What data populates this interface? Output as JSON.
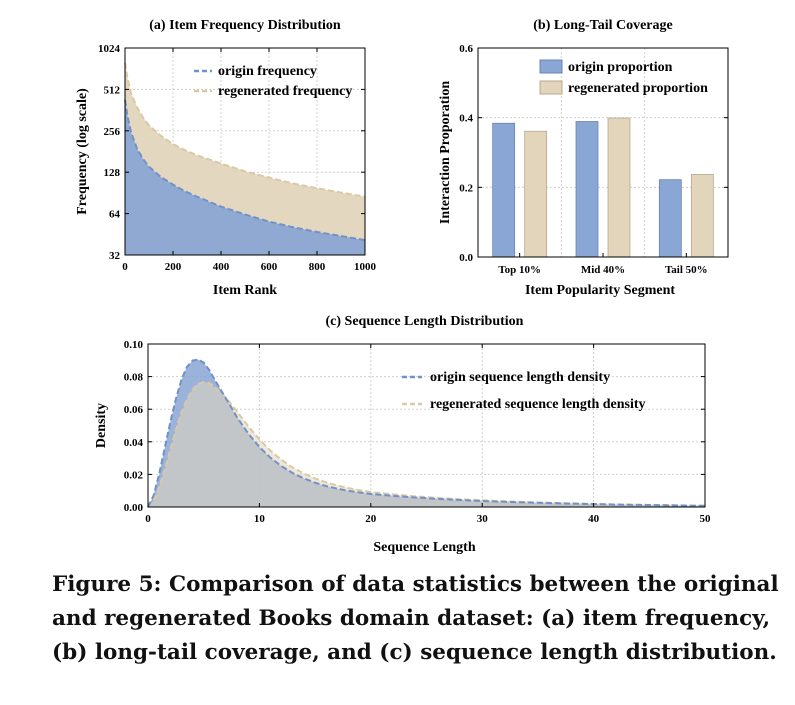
{
  "caption": "Figure 5: Comparison of data statistics between the original and regenerated Books domain dataset: (a) item frequency, (b) long-tail coverage, and (c) sequence length distribution.",
  "colors": {
    "origin": "#7191c8",
    "origin_fill": "#8aa6d4",
    "regen": "#d9c9a6",
    "regen_fill": "#e2d5bc",
    "grid": "#d0d0d0"
  },
  "chart_data": [
    {
      "id": "a",
      "type": "area",
      "title": "(a) Item Frequency Distribution",
      "xlabel": "Item Rank",
      "ylabel": "Frequency (log scale)",
      "yscale": "log2",
      "xlim": [
        0,
        1000
      ],
      "ylim": [
        32,
        1024
      ],
      "xticks": [
        0,
        200,
        400,
        600,
        800,
        1000
      ],
      "yticks": [
        32,
        64,
        128,
        256,
        512,
        1024
      ],
      "grid": true,
      "legend_position": "top-right",
      "x": [
        0,
        10,
        25,
        50,
        75,
        100,
        150,
        200,
        250,
        300,
        400,
        500,
        600,
        700,
        800,
        900,
        1000
      ],
      "series": [
        {
          "name": "origin frequency",
          "values": [
            430,
            330,
            250,
            190,
            160,
            140,
            118,
            104,
            93,
            85,
            72,
            63,
            56,
            51,
            47,
            44,
            41
          ]
        },
        {
          "name": "regenerated frequency",
          "values": [
            800,
            620,
            480,
            380,
            320,
            280,
            235,
            205,
            185,
            170,
            148,
            130,
            117,
            106,
            98,
            91,
            85
          ]
        }
      ]
    },
    {
      "id": "b",
      "type": "bar",
      "title": "(b) Long-Tail Coverage",
      "xlabel": "Item Popularity Segment",
      "ylabel": "Interaction Proporation",
      "ylim": [
        0,
        0.6
      ],
      "yticks": [
        0.0,
        0.2,
        0.4,
        0.6
      ],
      "grid": true,
      "legend_position": "top-right",
      "categories": [
        "Top 10%",
        "Mid 40%",
        "Tail 50%"
      ],
      "series": [
        {
          "name": "origin proportion",
          "values": [
            0.384,
            0.389,
            0.222
          ]
        },
        {
          "name": "regenerated proportion",
          "values": [
            0.361,
            0.399,
            0.237
          ]
        }
      ]
    },
    {
      "id": "c",
      "type": "area",
      "title": "(c) Sequence Length Distribution",
      "xlabel": "Sequence Length",
      "ylabel": "Density",
      "xlim": [
        0,
        50
      ],
      "ylim": [
        0,
        0.1
      ],
      "xticks": [
        0,
        10,
        20,
        30,
        40,
        50
      ],
      "yticks": [
        0.0,
        0.02,
        0.04,
        0.06,
        0.08,
        0.1
      ],
      "grid": true,
      "legend_position": "top-right",
      "x": [
        0,
        0.5,
        1,
        1.5,
        2,
        2.5,
        3,
        3.5,
        4,
        4.5,
        5,
        5.5,
        6,
        7,
        8,
        9,
        10,
        11,
        12,
        13,
        14,
        15,
        16,
        17,
        18,
        19,
        20,
        22,
        24,
        26,
        28,
        30,
        32,
        34,
        36,
        38,
        40,
        42,
        44,
        46,
        48,
        50
      ],
      "series": [
        {
          "name": "origin sequence length density",
          "values": [
            0.0,
            0.007,
            0.02,
            0.036,
            0.052,
            0.066,
            0.078,
            0.086,
            0.0898,
            0.0905,
            0.0885,
            0.084,
            0.078,
            0.0665,
            0.055,
            0.045,
            0.0368,
            0.0302,
            0.025,
            0.0208,
            0.0175,
            0.0149,
            0.0128,
            0.0112,
            0.0099,
            0.0089,
            0.008,
            0.0068,
            0.0058,
            0.005,
            0.0043,
            0.0037,
            0.0032,
            0.0028,
            0.0024,
            0.0021,
            0.0018,
            0.0015,
            0.0013,
            0.0011,
            0.0009,
            0.0007
          ]
        },
        {
          "name": "regenerated sequence length density",
          "values": [
            0.0,
            0.004,
            0.012,
            0.023,
            0.035,
            0.047,
            0.058,
            0.066,
            0.072,
            0.0755,
            0.0765,
            0.076,
            0.0735,
            0.067,
            0.0585,
            0.0495,
            0.0415,
            0.0345,
            0.0288,
            0.0242,
            0.0205,
            0.0175,
            0.0151,
            0.0132,
            0.0116,
            0.0103,
            0.0092,
            0.0077,
            0.0065,
            0.0056,
            0.0048,
            0.0041,
            0.0035,
            0.003,
            0.0026,
            0.0022,
            0.0019,
            0.0016,
            0.0014,
            0.0012,
            0.001,
            0.0008
          ]
        }
      ]
    }
  ]
}
